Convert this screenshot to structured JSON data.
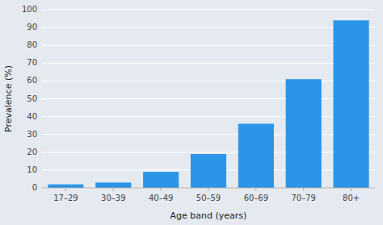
{
  "chart_data": {
    "type": "bar",
    "categories": [
      "17–29",
      "30–39",
      "40–49",
      "50–59",
      "60–69",
      "70–79",
      "80+"
    ],
    "values": [
      2,
      3,
      9,
      19,
      36,
      61,
      94
    ],
    "color": "#2b95e8",
    "xlabel": "Age band (years)",
    "ylabel": "Prevalence (%)",
    "ylim": [
      0,
      100
    ],
    "yticks": [
      0,
      10,
      20,
      30,
      40,
      50,
      60,
      70,
      80,
      90,
      100
    ],
    "grid": true
  }
}
